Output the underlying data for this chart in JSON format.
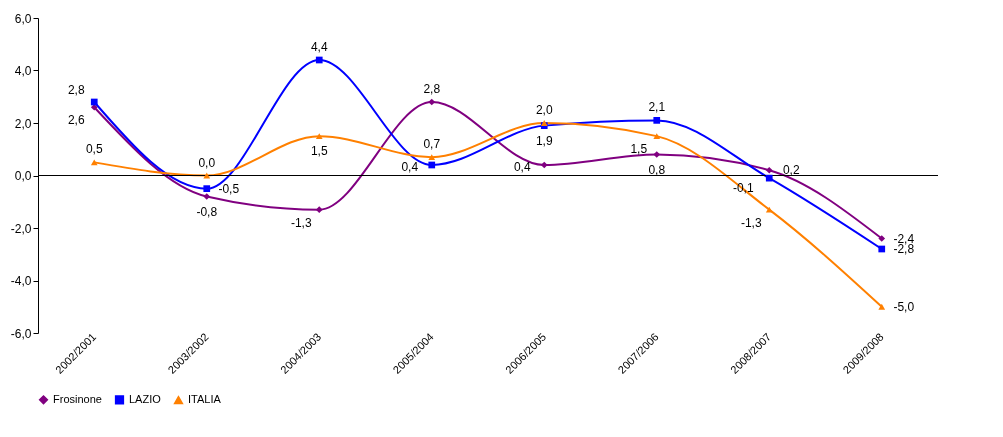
{
  "chart_data": {
    "type": "line",
    "categories": [
      "2002/2001",
      "2003/2002",
      "2004/2003",
      "2005/2004",
      "2006/2005",
      "2007/2006",
      "2008/2007",
      "2009/2008"
    ],
    "series": [
      {
        "name": "Frosinone",
        "color": "#800080",
        "marker": "diamond",
        "values": [
          2.6,
          -0.8,
          -1.3,
          2.8,
          0.4,
          0.8,
          0.2,
          -2.4
        ],
        "value_labels": [
          "2,6",
          "-0,8",
          "-1,3",
          "2,8",
          "0,4",
          "0,8",
          "0,2",
          "-2,4"
        ]
      },
      {
        "name": "LAZIO",
        "color": "#0000ff",
        "marker": "square",
        "values": [
          2.8,
          -0.5,
          4.4,
          0.4,
          1.9,
          2.1,
          -0.1,
          -2.8
        ],
        "value_labels": [
          "2,8",
          "-0,5",
          "4,4",
          "0,4",
          "1,9",
          "2,1",
          "-0,1",
          "-2,8"
        ]
      },
      {
        "name": "ITALIA",
        "color": "#ff8000",
        "marker": "triangle",
        "values": [
          0.5,
          0.0,
          1.5,
          0.7,
          2.0,
          1.5,
          -1.3,
          -5.0
        ],
        "value_labels": [
          "0,5",
          "0,0",
          "1,5",
          "0,7",
          "2,0",
          "1,5",
          "-1,3",
          "-5,0"
        ]
      }
    ],
    "ylim": [
      -6,
      6
    ],
    "yticks": [
      {
        "value": -6,
        "label": "-6,0"
      },
      {
        "value": -4,
        "label": "-4,0"
      },
      {
        "value": -2,
        "label": "-2,0"
      },
      {
        "value": 0,
        "label": "0,0"
      },
      {
        "value": 2,
        "label": "2,0"
      },
      {
        "value": 4,
        "label": "4,0"
      },
      {
        "value": 6,
        "label": "6,0"
      }
    ],
    "ref_lines": [
      {
        "axis": "y",
        "value": 0,
        "color": "#000000"
      }
    ],
    "legend": "bottom",
    "line_style": "solid"
  }
}
